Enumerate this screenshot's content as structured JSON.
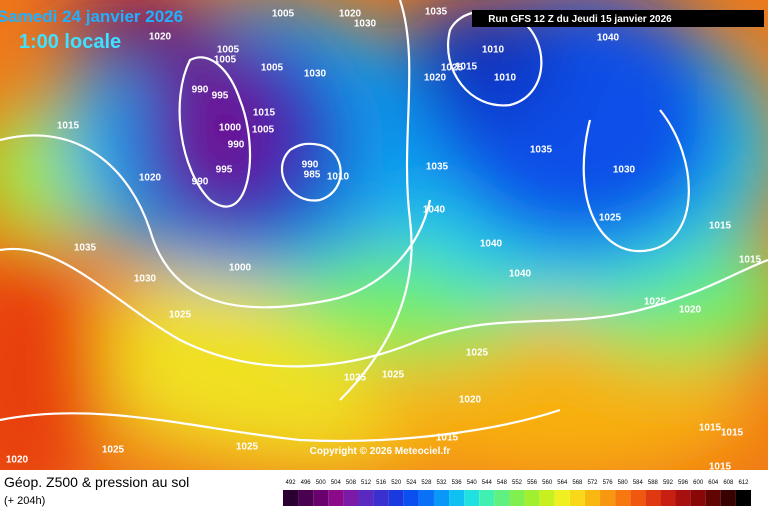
{
  "header": {
    "valid": "Samedi 24 janvier 2026",
    "local_time": "1:00 locale",
    "run": "Run GFS 12 Z du Jeudi 15 janvier 2026",
    "copyright": "Copyright © 2026 Meteociel.fr"
  },
  "legend": {
    "title": "Géop. Z500 & pression au sol",
    "lead": "(+ 204h)",
    "scale": [
      492,
      496,
      500,
      504,
      508,
      512,
      516,
      520,
      524,
      528,
      532,
      536,
      540,
      544,
      548,
      552,
      556,
      560,
      564,
      568,
      572,
      576,
      580,
      584,
      588,
      592,
      596,
      600,
      604,
      608,
      612
    ],
    "colors": [
      "#2a0030",
      "#4a0050",
      "#6a006e",
      "#8a0a8a",
      "#7a1aa6",
      "#5a2ac0",
      "#3a30d0",
      "#1a3ae0",
      "#0a50f0",
      "#0a70f8",
      "#0a98f8",
      "#10c0f0",
      "#20e0e0",
      "#40f0b0",
      "#60f080",
      "#80f050",
      "#a0f030",
      "#c8f020",
      "#f0f020",
      "#f8d818",
      "#f8b810",
      "#f89810",
      "#f87810",
      "#f05810",
      "#e03810",
      "#c82010",
      "#a81010",
      "#880808",
      "#600404",
      "#380202",
      "#000000"
    ]
  },
  "isobars": [
    1005,
    1020,
    1030,
    1035,
    1020,
    1005,
    1005,
    1005,
    1030,
    1010,
    1015,
    1020,
    1025,
    1010,
    1040,
    990,
    995,
    1015,
    1005,
    1000,
    990,
    1015,
    1020,
    995,
    990,
    990,
    985,
    1010,
    1035,
    1035,
    1030,
    1040,
    1025,
    1015,
    1035,
    1000,
    1040,
    1040,
    1015,
    1030,
    1025,
    1025,
    1020,
    1025,
    1025,
    1025,
    1020,
    1015,
    1015,
    1015,
    1025,
    1025,
    1020,
    1015
  ]
}
